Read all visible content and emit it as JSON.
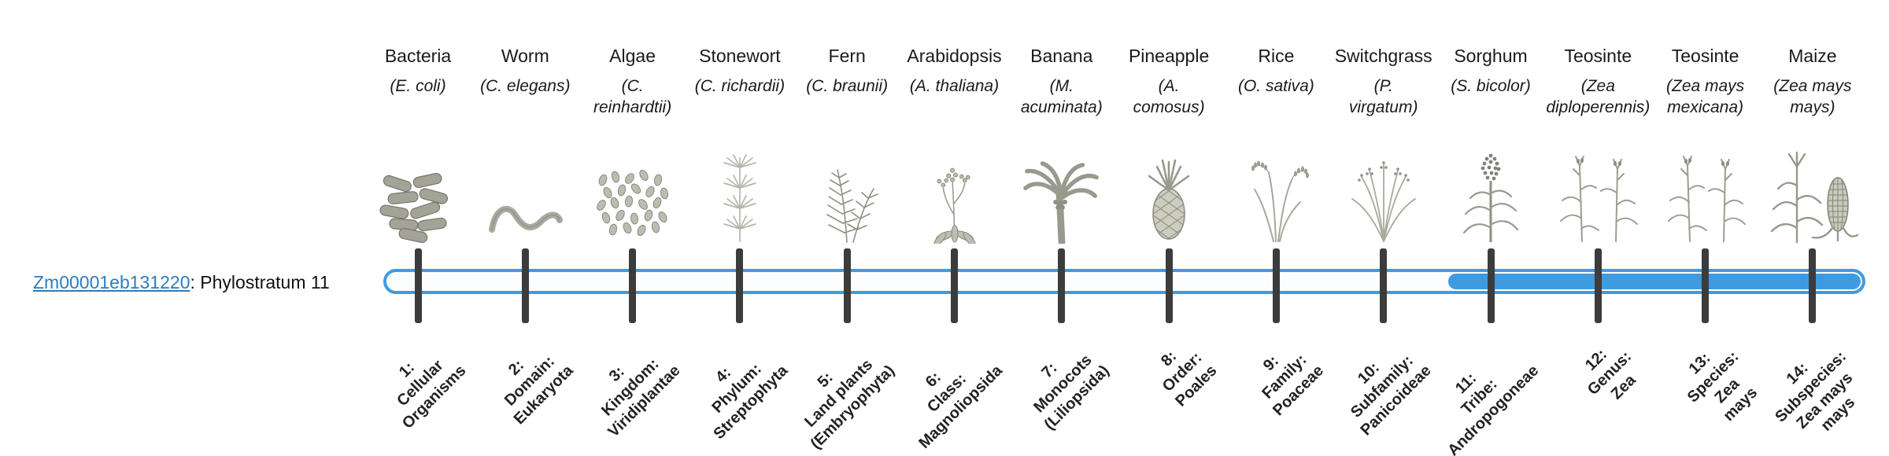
{
  "gene": {
    "id": "Zm00001eb131220",
    "suffix": ": Phylostratum 11",
    "phylostratum": 11
  },
  "colors": {
    "bar": "#3e9be1",
    "bar_bg": "#fbfdff",
    "tick": "#3c3c3c",
    "link": "#2d7cbf"
  },
  "organisms": [
    {
      "common": "Bacteria",
      "scientific": "(E. coli)",
      "icon": "bacteria-icon"
    },
    {
      "common": "Worm",
      "scientific": "(C. elegans)",
      "icon": "worm-icon"
    },
    {
      "common": "Algae",
      "scientific": "(C.\nreinhardtii)",
      "icon": "algae-icon"
    },
    {
      "common": "Stonewort",
      "scientific": "(C. richardii)",
      "icon": "stonewort-icon"
    },
    {
      "common": "Fern",
      "scientific": "(C. braunii)",
      "icon": "fern-icon"
    },
    {
      "common": "Arabidopsis",
      "scientific": "(A. thaliana)",
      "icon": "arabidopsis-icon"
    },
    {
      "common": "Banana",
      "scientific": "(M.\nacuminata)",
      "icon": "banana-icon"
    },
    {
      "common": "Pineapple",
      "scientific": "(A.\ncomosus)",
      "icon": "pineapple-icon"
    },
    {
      "common": "Rice",
      "scientific": "(O. sativa)",
      "icon": "rice-icon"
    },
    {
      "common": "Switchgrass",
      "scientific": "(P.\nvirgatum)",
      "icon": "switchgrass-icon"
    },
    {
      "common": "Sorghum",
      "scientific": "(S. bicolor)",
      "icon": "sorghum-icon"
    },
    {
      "common": "Teosinte",
      "scientific": "(Zea\ndiploperennis)",
      "icon": "teosinte-icon"
    },
    {
      "common": "Teosinte",
      "scientific": "(Zea mays\nmexicana)",
      "icon": "teosinte-icon"
    },
    {
      "common": "Maize",
      "scientific": "(Zea mays\nmays)",
      "icon": "maize-icon"
    }
  ],
  "strata": [
    "1:\nCellular\nOrganisms",
    "2:\nDomain:\nEukaryota",
    "3:\nKingdom:\nViridiplantae",
    "4:\nPhylum:\nStreptophyta",
    "5:\nLand plants\n(Embryophyta)",
    "6:\nClass:\nMagnoliopsida",
    "7:\nMonocots\n(Liliopsida)",
    "8:\nOrder:\nPoales",
    "9:\nFamily:\nPoaceae",
    "10:\nSubfamily:\nPanicoideae",
    "11:\nTribe:\nAndropogoneae",
    "12:\nGenus:\nZea",
    "13:\nSpecies:\nZea\nmays",
    "14:\nSubspecies:\nZea mays\nmays"
  ]
}
